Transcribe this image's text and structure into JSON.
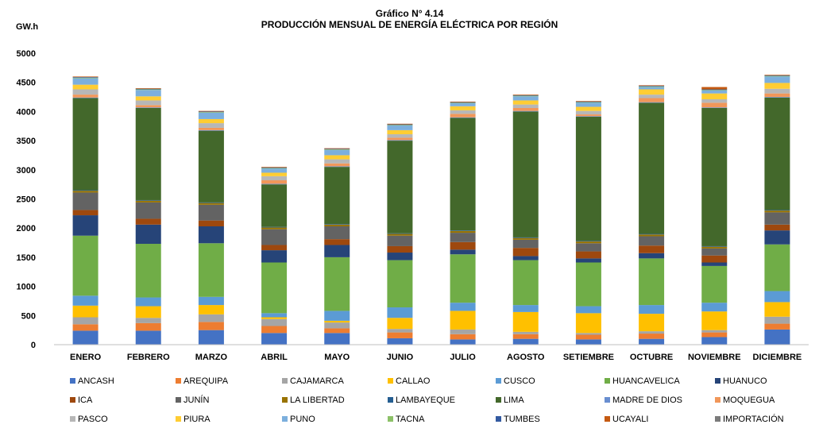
{
  "chart_data": {
    "type": "bar",
    "stacked": true,
    "title": "Gráfico N° 4.14",
    "subtitle": "PRODUCCIÓN MENSUAL DE ENERGÍA ELÉCTRICA POR REGIÓN",
    "ylabel": "GW.h",
    "xlabel": "",
    "ylim": [
      0,
      5000
    ],
    "yticks": [
      0,
      500,
      1000,
      1500,
      2000,
      2500,
      3000,
      3500,
      4000,
      4500,
      5000
    ],
    "grid": false,
    "legend_position": "bottom",
    "categories": [
      "ENERO",
      "FEBRERO",
      "MARZO",
      "ABRIL",
      "MAYO",
      "JUNIO",
      "JULIO",
      "AGOSTO",
      "SETIEMBRE",
      "OCTUBRE",
      "NOVIEMBRE",
      "DICIEMBRE"
    ],
    "series": [
      {
        "name": "ANCASH",
        "color": "#4472c4",
        "values": [
          240,
          240,
          250,
          200,
          200,
          110,
          90,
          100,
          90,
          100,
          130,
          260
        ]
      },
      {
        "name": "AREQUIPA",
        "color": "#ed7d31",
        "values": [
          110,
          130,
          140,
          120,
          80,
          100,
          90,
          80,
          80,
          90,
          80,
          100
        ]
      },
      {
        "name": "CAJAMARCA",
        "color": "#a5a5a5",
        "values": [
          120,
          90,
          130,
          120,
          100,
          60,
          80,
          40,
          30,
          40,
          40,
          120
        ]
      },
      {
        "name": "CALLAO",
        "color": "#ffc000",
        "values": [
          200,
          200,
          160,
          30,
          30,
          190,
          320,
          340,
          340,
          300,
          320,
          250
        ]
      },
      {
        "name": "CUSCO",
        "color": "#5b9bd5",
        "values": [
          170,
          150,
          140,
          70,
          170,
          180,
          140,
          120,
          120,
          150,
          150,
          190
        ]
      },
      {
        "name": "HUANCAVELICA",
        "color": "#70ad47",
        "values": [
          1030,
          920,
          920,
          870,
          920,
          810,
          830,
          770,
          750,
          800,
          630,
          800
        ]
      },
      {
        "name": "HUANUCO",
        "color": "#264478",
        "values": [
          350,
          330,
          290,
          210,
          210,
          130,
          80,
          70,
          70,
          90,
          60,
          240
        ]
      },
      {
        "name": "ICA",
        "color": "#9e480e",
        "values": [
          90,
          100,
          100,
          90,
          100,
          110,
          130,
          140,
          120,
          130,
          120,
          100
        ]
      },
      {
        "name": "JUNÍN",
        "color": "#636363",
        "values": [
          300,
          280,
          270,
          270,
          220,
          180,
          160,
          140,
          140,
          160,
          120,
          210
        ]
      },
      {
        "name": "LA LIBERTAD",
        "color": "#997300",
        "values": [
          30,
          30,
          30,
          30,
          30,
          30,
          30,
          30,
          30,
          30,
          30,
          30
        ]
      },
      {
        "name": "LAMBAYEQUE",
        "color": "#255e91",
        "values": [
          10,
          10,
          10,
          10,
          10,
          10,
          10,
          10,
          10,
          10,
          10,
          10
        ]
      },
      {
        "name": "LIMA",
        "color": "#43682b",
        "values": [
          1580,
          1580,
          1230,
          730,
          980,
          1590,
          1930,
          2160,
          2130,
          2250,
          2370,
          1930
        ]
      },
      {
        "name": "MADRE DE DIOS",
        "color": "#698ed0",
        "values": [
          10,
          10,
          10,
          10,
          10,
          10,
          10,
          10,
          10,
          10,
          10,
          10
        ]
      },
      {
        "name": "MOQUEGUA",
        "color": "#f1975a",
        "values": [
          50,
          40,
          40,
          60,
          50,
          40,
          60,
          50,
          30,
          70,
          80,
          60
        ]
      },
      {
        "name": "PASCO",
        "color": "#b7b7b7",
        "values": [
          90,
          80,
          80,
          70,
          70,
          60,
          60,
          60,
          60,
          60,
          60,
          80
        ]
      },
      {
        "name": "PIURA",
        "color": "#ffcd33",
        "values": [
          80,
          70,
          70,
          60,
          70,
          70,
          70,
          70,
          70,
          90,
          100,
          100
        ]
      },
      {
        "name": "PUNO",
        "color": "#7cafdd",
        "values": [
          110,
          110,
          110,
          70,
          90,
          80,
          50,
          70,
          70,
          40,
          50,
          110
        ]
      },
      {
        "name": "TACNA",
        "color": "#8cc168",
        "values": [
          10,
          10,
          10,
          10,
          10,
          10,
          10,
          10,
          10,
          10,
          10,
          10
        ]
      },
      {
        "name": "TUMBES",
        "color": "#335aa1",
        "values": [
          10,
          10,
          10,
          10,
          10,
          10,
          10,
          10,
          10,
          10,
          10,
          10
        ]
      },
      {
        "name": "UCAYALI",
        "color": "#c55a11",
        "values": [
          10,
          10,
          10,
          10,
          10,
          10,
          10,
          10,
          10,
          10,
          40,
          10
        ]
      },
      {
        "name": "IMPORTACIÓN",
        "color": "#7b7b7b",
        "values": [
          0,
          0,
          0,
          0,
          0,
          0,
          0,
          0,
          0,
          0,
          0,
          0
        ]
      }
    ]
  }
}
